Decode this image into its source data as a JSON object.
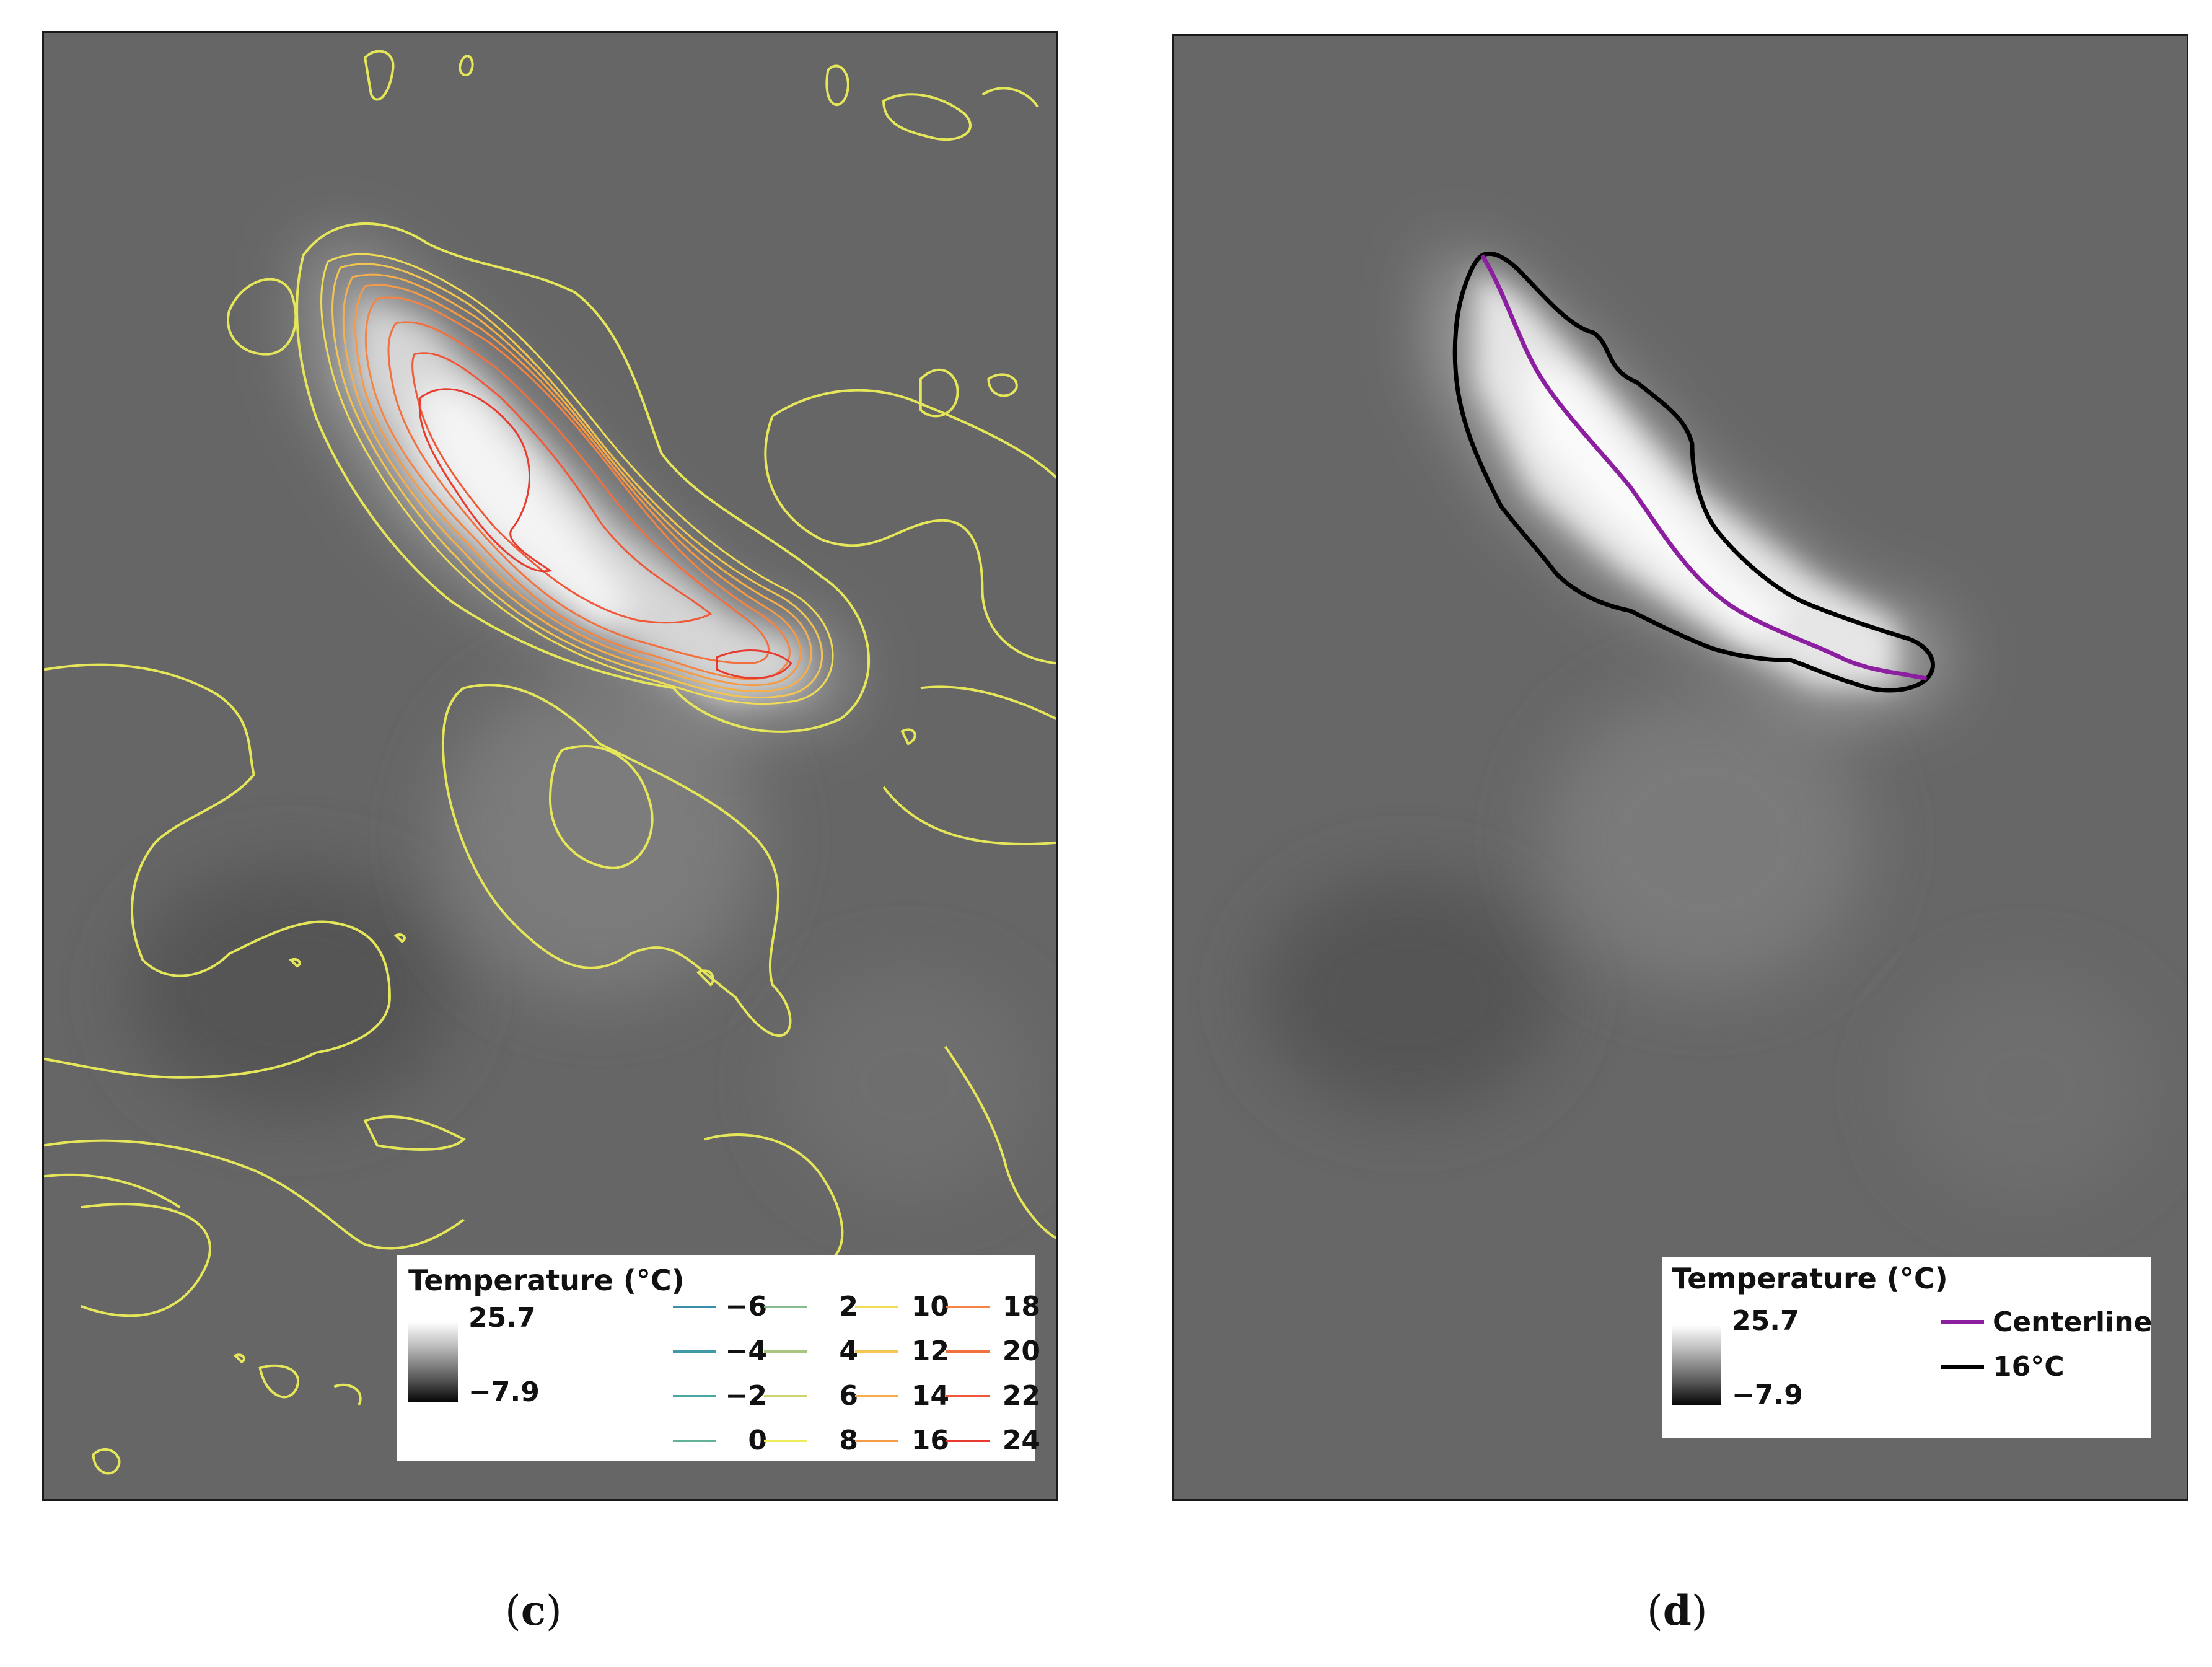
{
  "panels": {
    "c": {
      "caption_open": "(",
      "caption_letter": "c",
      "caption_close": ")",
      "legend": {
        "title": "Temperature (°C)",
        "ramp_max": "25.7",
        "ramp_min": "−7.9",
        "contours": [
          {
            "label": "−6",
            "color": "#3a8ea8"
          },
          {
            "label": "−4",
            "color": "#3f9aa6"
          },
          {
            "label": "−2",
            "color": "#4aa7a4"
          },
          {
            "label": "0",
            "color": "#62b29a"
          },
          {
            "label": "2",
            "color": "#86bc8e"
          },
          {
            "label": "4",
            "color": "#a9c67f"
          },
          {
            "label": "6",
            "color": "#cfd56e"
          },
          {
            "label": "8",
            "color": "#ecec5a"
          },
          {
            "label": "10",
            "color": "#f1dc56"
          },
          {
            "label": "12",
            "color": "#f4c651"
          },
          {
            "label": "14",
            "color": "#f5b04c"
          },
          {
            "label": "16",
            "color": "#f59a47"
          },
          {
            "label": "18",
            "color": "#f48443"
          },
          {
            "label": "20",
            "color": "#f2703e"
          },
          {
            "label": "22",
            "color": "#ef5838"
          },
          {
            "label": "24",
            "color": "#e83b30"
          }
        ]
      }
    },
    "d": {
      "caption_open": "(",
      "caption_letter": "d",
      "caption_close": ")",
      "legend": {
        "title": "Temperature (°C)",
        "ramp_max": "25.7",
        "ramp_min": "−7.9",
        "centerline_label": "Centerline",
        "centerline_color": "#8b1fa0",
        "isotherm_label": "16°C",
        "isotherm_color": "#000000"
      }
    }
  }
}
